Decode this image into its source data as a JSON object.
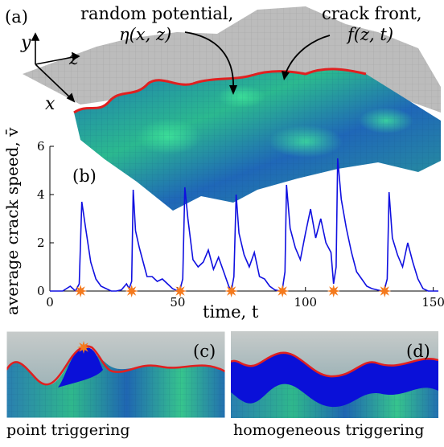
{
  "panels": {
    "a": {
      "label": "(a)",
      "axis_y": "y",
      "axis_z": "z",
      "axis_x": "x",
      "potential_label": "random potential,",
      "potential_symbol": "η(x, z)",
      "front_label": "crack front,",
      "front_symbol": "f(z, t)"
    },
    "b": {
      "label": "(b)"
    },
    "c": {
      "label": "(c)",
      "caption": "point triggering"
    },
    "d": {
      "label": "(d)",
      "caption": "homogeneous triggering"
    }
  },
  "colors": {
    "surface_grey": "#b9b9b9",
    "surface_teal": "#2a8fa0",
    "surface_green": "#2fd28a",
    "surface_blue": "#1f5fb8",
    "crack_front": "#e02020",
    "speed_line": "#1010e0",
    "trigger_marker": "#f47a1e",
    "advance_fill": "#0a10d8"
  },
  "chart_data": {
    "type": "line",
    "title": "",
    "xlabel": "time, t",
    "ylabel": "average crack speed, v̄",
    "xlim": [
      0,
      152
    ],
    "ylim": [
      0,
      6
    ],
    "xticks": [
      0,
      50,
      100,
      150
    ],
    "yticks": [
      0,
      2,
      4,
      6
    ],
    "grid": false,
    "series": [
      {
        "x": [
          0,
          5,
          8,
          10,
          11.5,
          12.5,
          14,
          16,
          18,
          20,
          22,
          24,
          26,
          28,
          30,
          31,
          32,
          32.6,
          33.5,
          35,
          36.5,
          38,
          40,
          42,
          44,
          46,
          48,
          50,
          51,
          52,
          52.8,
          54,
          56,
          58,
          60,
          62,
          64,
          66,
          68,
          70,
          71,
          72,
          72.9,
          74,
          76,
          78,
          80,
          82,
          84,
          86,
          88,
          90,
          91,
          92,
          92.6,
          94,
          96,
          98,
          100,
          102,
          104,
          106,
          108,
          110,
          111,
          112,
          112.6,
          114,
          116,
          118,
          120,
          122,
          124,
          126,
          128,
          130,
          131,
          132,
          132.7,
          134,
          136,
          138,
          140,
          142,
          144,
          146,
          148,
          150,
          152
        ],
        "y": [
          0,
          0,
          0.2,
          0,
          0.3,
          3.7,
          2.6,
          1.2,
          0.5,
          0.2,
          0.1,
          0,
          0,
          0.05,
          0.3,
          0.1,
          0.4,
          4.2,
          2.5,
          1.8,
          1.2,
          0.6,
          0.6,
          0.4,
          0.5,
          0.3,
          0.1,
          0,
          0.1,
          0.5,
          4.3,
          3.0,
          1.3,
          1.0,
          1.2,
          1.7,
          0.9,
          1.4,
          0.8,
          0.2,
          0,
          0.6,
          4.0,
          2.4,
          1.5,
          1.0,
          1.6,
          0.6,
          0.5,
          0.2,
          0.05,
          0,
          0.1,
          0.8,
          4.4,
          2.6,
          1.8,
          1.3,
          2.4,
          3.4,
          2.2,
          3.0,
          2.0,
          1.6,
          0.3,
          1.0,
          5.5,
          3.8,
          2.6,
          1.6,
          0.8,
          0.5,
          0.2,
          0.1,
          0.05,
          0,
          0.1,
          0.5,
          4.1,
          2.2,
          1.5,
          1.0,
          2.0,
          1.2,
          0.5,
          0.1,
          0,
          0,
          0
        ]
      }
    ],
    "trigger_times": [
      12,
      32,
      51,
      71,
      91,
      111,
      131
    ]
  }
}
